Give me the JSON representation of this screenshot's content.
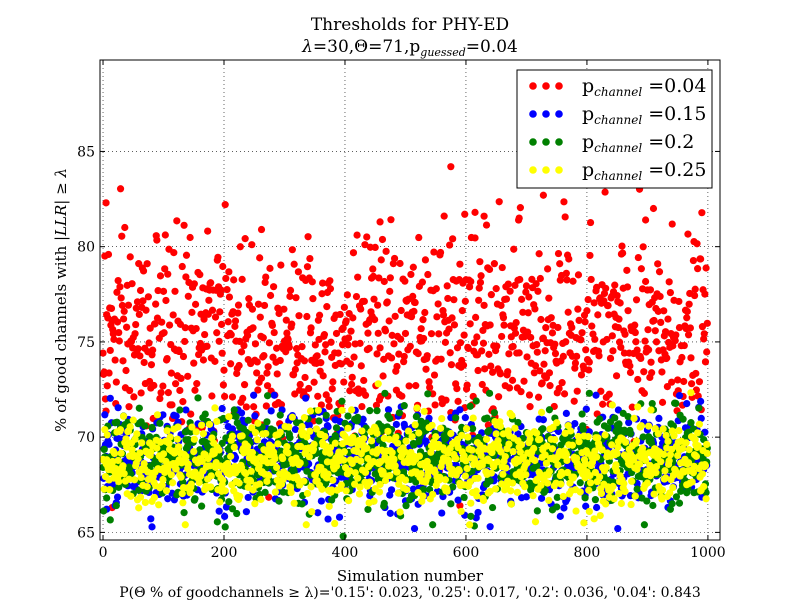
{
  "chart_data": {
    "type": "scatter",
    "title_line1": "Thresholds for PHY-ED",
    "title_line2": {
      "lambda_sym": "λ",
      "lambda_val": "=30,",
      "theta_sym": "Θ",
      "theta_val": "=71,p",
      "sub": "guessed",
      "rest": "=0.04"
    },
    "xlabel": "Simulation number",
    "ylabel": {
      "prefix": "% of good channels with ",
      "math": "|LLR| ≥ λ"
    },
    "caption": "P(Θ % of goodchannels ≥ λ)='0.15': 0.023, '0.25': 0.017, '0.2': 0.036, '0.04': 0.843",
    "xlim": [
      -5,
      1020
    ],
    "ylim": [
      64.6,
      89.8
    ],
    "xticks": [
      0,
      200,
      400,
      600,
      800,
      1000
    ],
    "yticks": [
      65,
      70,
      75,
      80,
      85
    ],
    "grid": true,
    "grid_style": "dotted",
    "legend_position": "top-right",
    "n_points_per_series": 1000,
    "series": [
      {
        "name_prefix": "p",
        "name_sub": "channel",
        "name_suffix": " =0.04",
        "color": "#ff0000",
        "distribution": {
          "mean": 75.3,
          "sd": 2.6,
          "min": 66.2,
          "max": 84.3
        },
        "highlights": [
          {
            "x": 5,
            "y": 82.3
          },
          {
            "x": 575,
            "y": 84.2
          },
          {
            "x": 598,
            "y": 81.7
          },
          {
            "x": 615,
            "y": 81.8
          },
          {
            "x": 630,
            "y": 81.6
          },
          {
            "x": 688,
            "y": 81.5
          },
          {
            "x": 728,
            "y": 82.7
          },
          {
            "x": 897,
            "y": 81.4
          },
          {
            "x": 262,
            "y": 80.9
          },
          {
            "x": 458,
            "y": 81.3
          },
          {
            "x": 15,
            "y": 66.3
          },
          {
            "x": 590,
            "y": 66.4
          }
        ]
      },
      {
        "name_prefix": "p",
        "name_sub": "channel",
        "name_suffix": " =0.15",
        "color": "#0000ff",
        "distribution": {
          "mean": 68.9,
          "sd": 1.2,
          "min": 65.2,
          "max": 72.2
        },
        "highlights": [
          {
            "x": 372,
            "y": 65.7
          },
          {
            "x": 640,
            "y": 65.3
          },
          {
            "x": 598,
            "y": 65.9
          }
        ]
      },
      {
        "name_prefix": "p",
        "name_sub": "channel",
        "name_suffix": " =0.2",
        "color": "#008000",
        "distribution": {
          "mean": 68.9,
          "sd": 1.2,
          "min": 64.8,
          "max": 72.3
        },
        "highlights": [
          {
            "x": 397,
            "y": 64.8
          },
          {
            "x": 545,
            "y": 65.4
          },
          {
            "x": 895,
            "y": 65.4
          }
        ]
      },
      {
        "name_prefix": "p",
        "name_sub": "channel",
        "name_suffix": " =0.25",
        "color": "#ffff00",
        "distribution": {
          "mean": 68.7,
          "sd": 1.1,
          "min": 65.4,
          "max": 72.8
        },
        "highlights": [
          {
            "x": 795,
            "y": 65.5
          },
          {
            "x": 455,
            "y": 72.8
          }
        ]
      }
    ]
  }
}
